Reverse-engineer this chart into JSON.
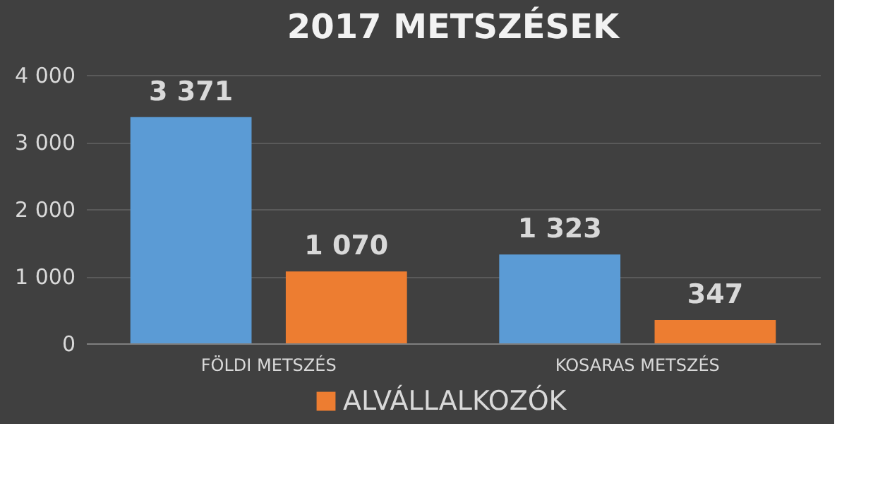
{
  "chart_data": {
    "type": "bar",
    "title": "2017 METSZÉSEK",
    "categories": [
      "FÖLDI METSZÉS",
      "KOSARAS METSZÉS"
    ],
    "series": [
      {
        "color": "#5b9bd5",
        "values": [
          3371,
          1323
        ],
        "value_labels": [
          "3 371",
          "1 323"
        ]
      },
      {
        "name": "ALVÁLLALKOZÓK",
        "color": "#ed7d31",
        "values": [
          1070,
          347
        ],
        "value_labels": [
          "1 070",
          "347"
        ]
      }
    ],
    "ylim": [
      0,
      4000
    ],
    "yticks": [
      0,
      {
        "value": 1000,
        "label": "1 000"
      },
      {
        "value": 2000,
        "label": "2 000"
      },
      {
        "value": 3000,
        "label": "3 000"
      },
      {
        "value": 4000,
        "label": "4 000"
      }
    ],
    "grid": "y",
    "legend": "bottom"
  }
}
